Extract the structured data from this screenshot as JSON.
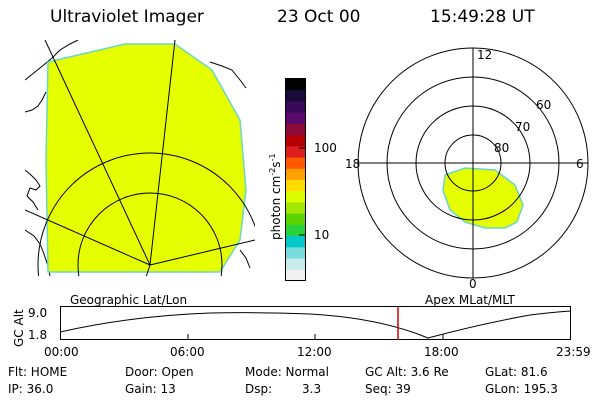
{
  "header": {
    "instrument": "Ultraviolet Imager",
    "date": "23 Oct 00",
    "time": "15:49:28 UT"
  },
  "colorbar": {
    "unit": "photon cm",
    "exp1": "-2",
    "mid": "s",
    "exp2": "-1",
    "tick_high": "100",
    "tick_low": "10",
    "colors": [
      "#000000",
      "#1a0a3a",
      "#3a0a5a",
      "#5a0a6a",
      "#8a0a3a",
      "#b40000",
      "#dc1e1e",
      "#ff5a00",
      "#ffa000",
      "#ffdc00",
      "#dcff00",
      "#a0e600",
      "#5ad200",
      "#28d23c",
      "#00c8c8",
      "#78dcdc",
      "#c8ebeb",
      "#f0f0f0"
    ]
  },
  "left_panel": {
    "label": "Geographic Lat/Lon",
    "emission_color": "#e6ff00",
    "edge_color": "#6ad6c8"
  },
  "right_panel": {
    "label": "Apex MLat/MLT",
    "mlt_top": "12",
    "mlt_left": "18",
    "mlt_right": "6",
    "mlt_bottom": "0",
    "lat_60": "60",
    "lat_70": "70",
    "lat_80": "80"
  },
  "altitude_plot": {
    "ylabel": "GC Alt",
    "y_ticks": [
      "9.0",
      "1.8"
    ],
    "x_ticks": [
      "00:00",
      "06:00",
      "12:00",
      "18:00",
      "23:59"
    ],
    "marker_color": "#cc0000"
  },
  "info": {
    "flt": "Flt: HOME",
    "ip": "IP: 36.0",
    "door": "Door: Open",
    "gain": "Gain: 13",
    "mode": "Mode: Normal",
    "dsp_label": "Dsp:",
    "dsp_value": "3.3",
    "gc_alt": "GC Alt: 3.6 Re",
    "seq": "Seq: 39",
    "glat": "GLat: 81.6",
    "glon": "GLon: 195.3"
  }
}
